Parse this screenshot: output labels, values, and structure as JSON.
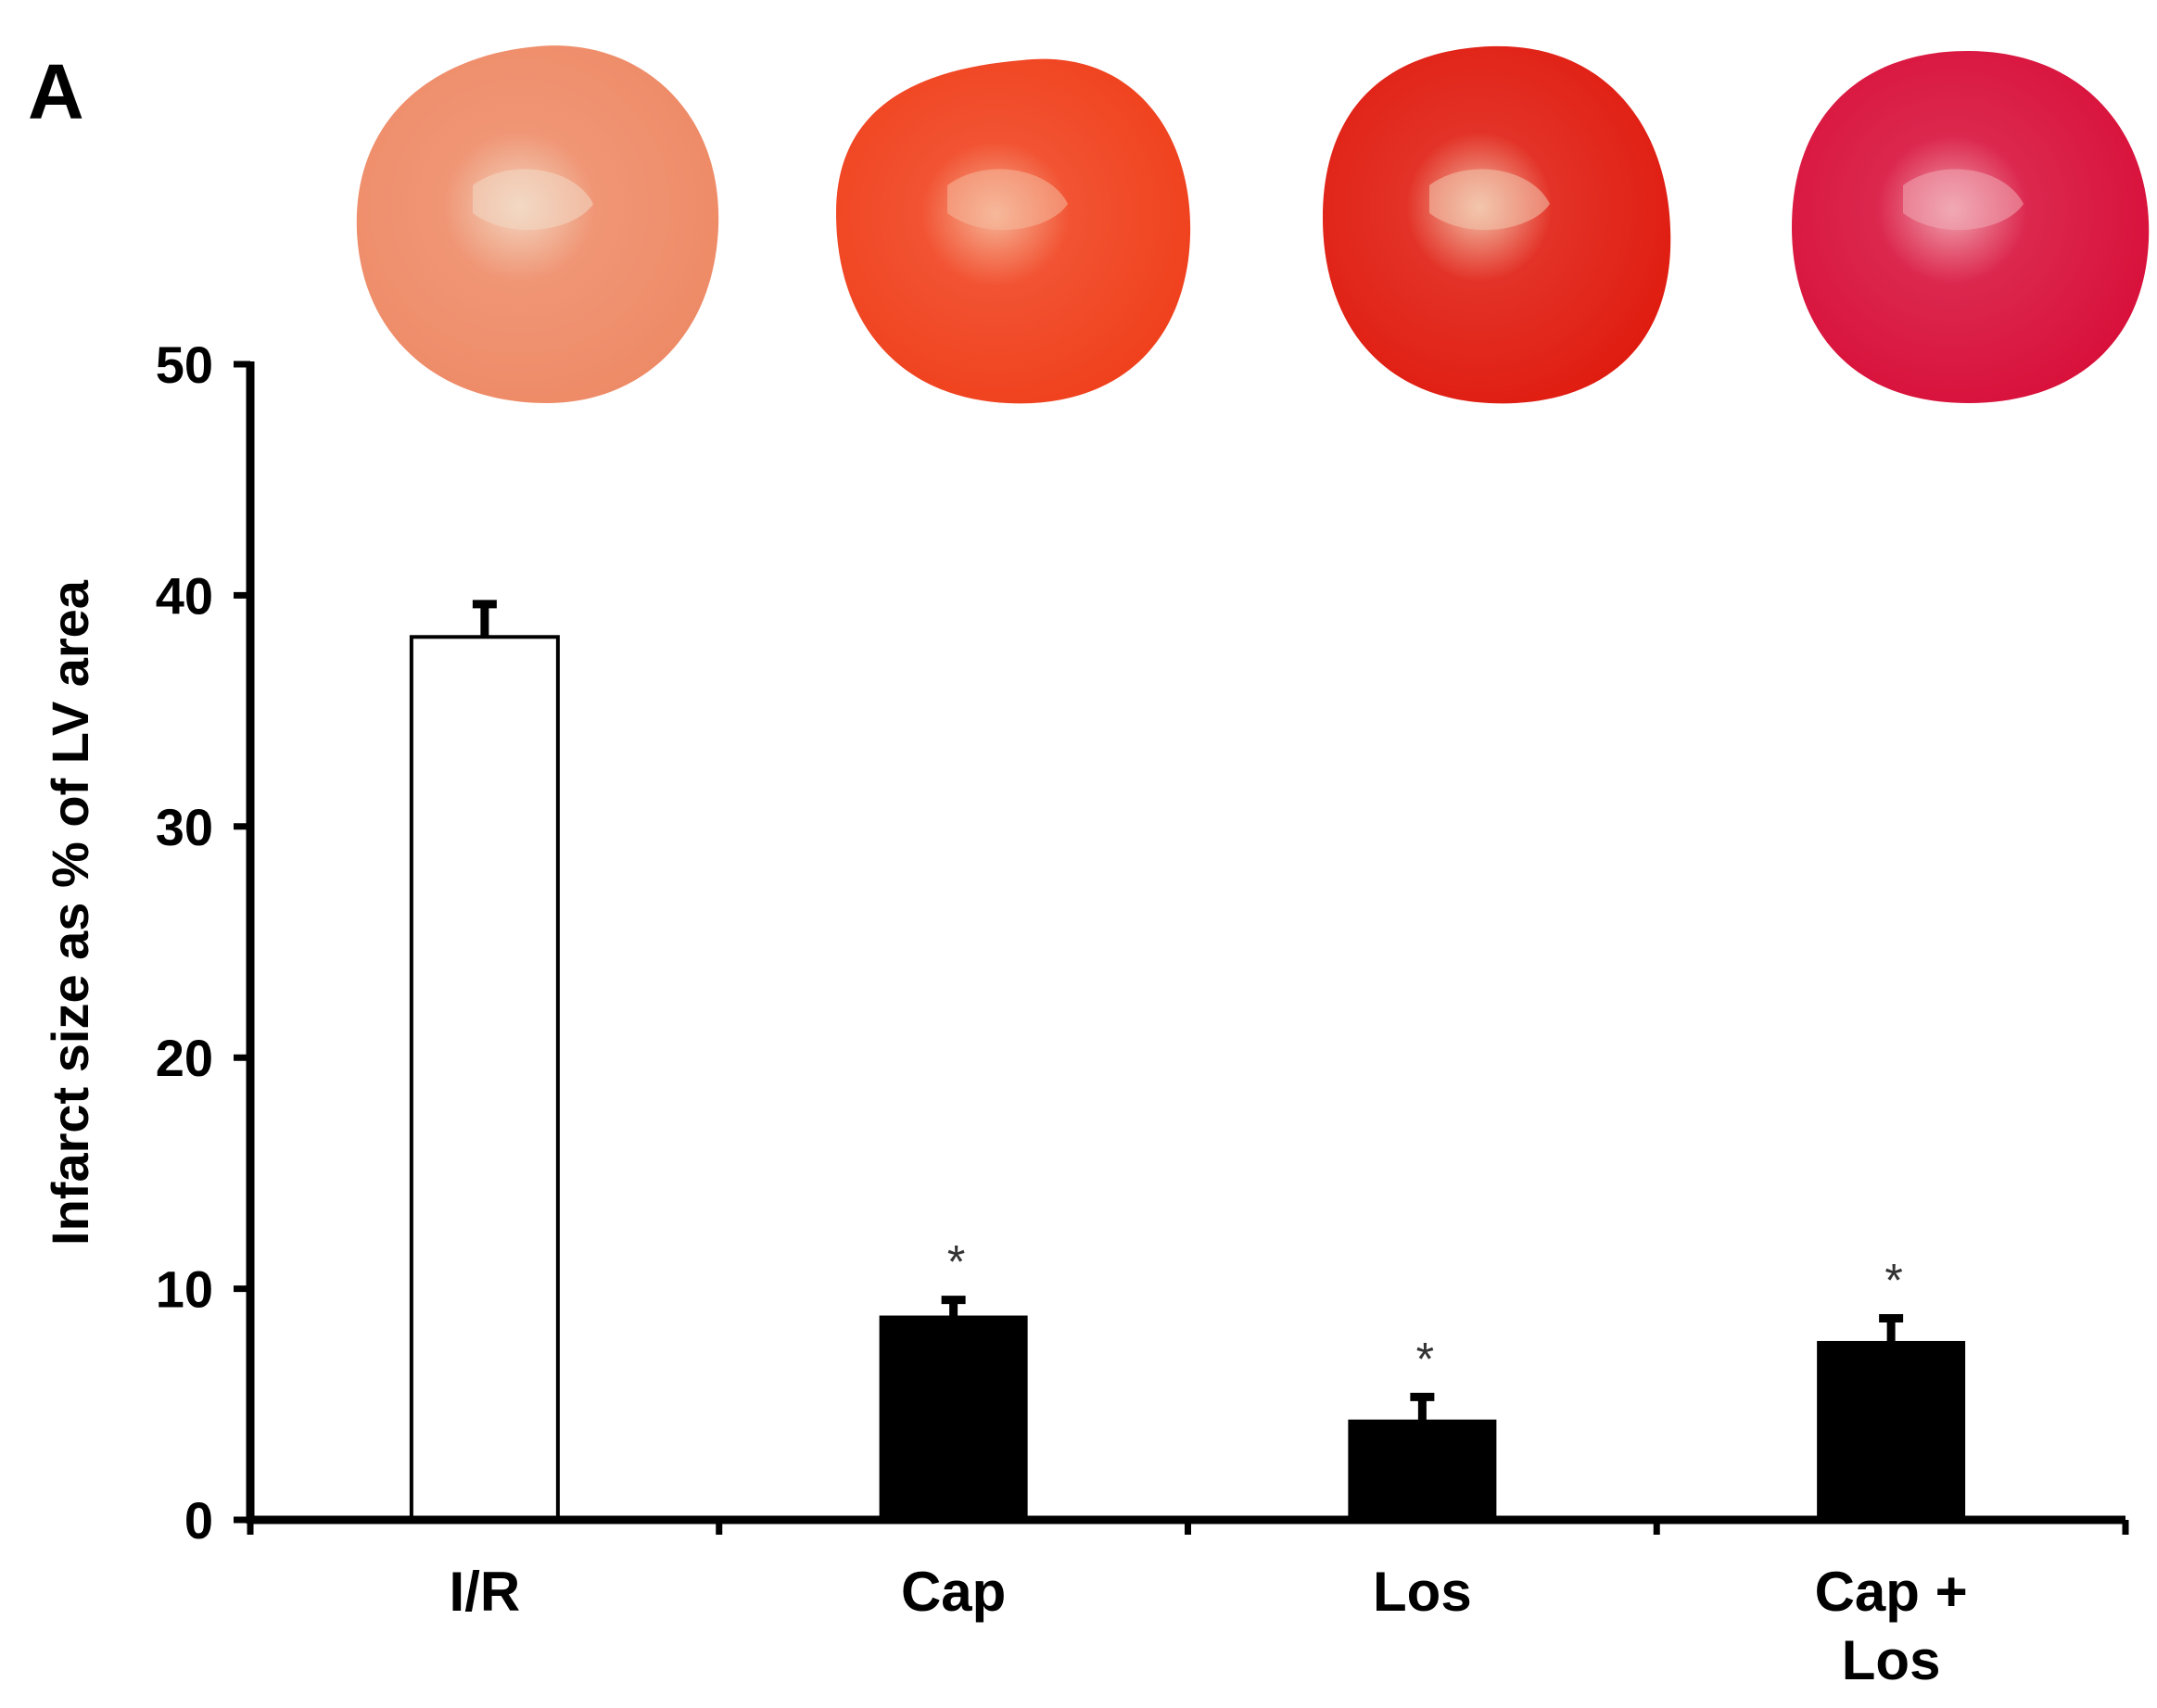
{
  "panel_label": "A",
  "heart_images": [
    {
      "label": "I/R",
      "tone": "pale",
      "base": "#ee8a66",
      "center": "#f3d9c4"
    },
    {
      "label": "Cap",
      "tone": "orange-red",
      "base": "#f0401c",
      "center": "#f6b89a"
    },
    {
      "label": "Los",
      "tone": "red",
      "base": "#e01c10",
      "center": "#f3c7ad"
    },
    {
      "label": "Cap + Los",
      "tone": "crimson",
      "base": "#d8103a",
      "center": "#f1a9b4"
    }
  ],
  "chart_data": {
    "type": "bar",
    "title": "",
    "xlabel": "",
    "ylabel": "Infarct size as % of LV area",
    "ylim": [
      0,
      50
    ],
    "yticks": [
      "0",
      "10",
      "20",
      "30",
      "40",
      "50"
    ],
    "categories": [
      "I/R",
      "Cap",
      "Los",
      "Cap + Los"
    ],
    "category_lines": [
      [
        "I/R"
      ],
      [
        "Cap"
      ],
      [
        "Los"
      ],
      [
        "Cap +",
        "Los"
      ]
    ],
    "values": [
      38.2,
      8.8,
      4.3,
      7.7
    ],
    "errors": [
      1.5,
      0.8,
      1.1,
      1.1
    ],
    "bar_colors": [
      "#ffffff",
      "#000000",
      "#000000",
      "#000000"
    ],
    "significance": [
      "",
      "*",
      "*",
      "*"
    ],
    "grid": false,
    "legend": "none"
  }
}
